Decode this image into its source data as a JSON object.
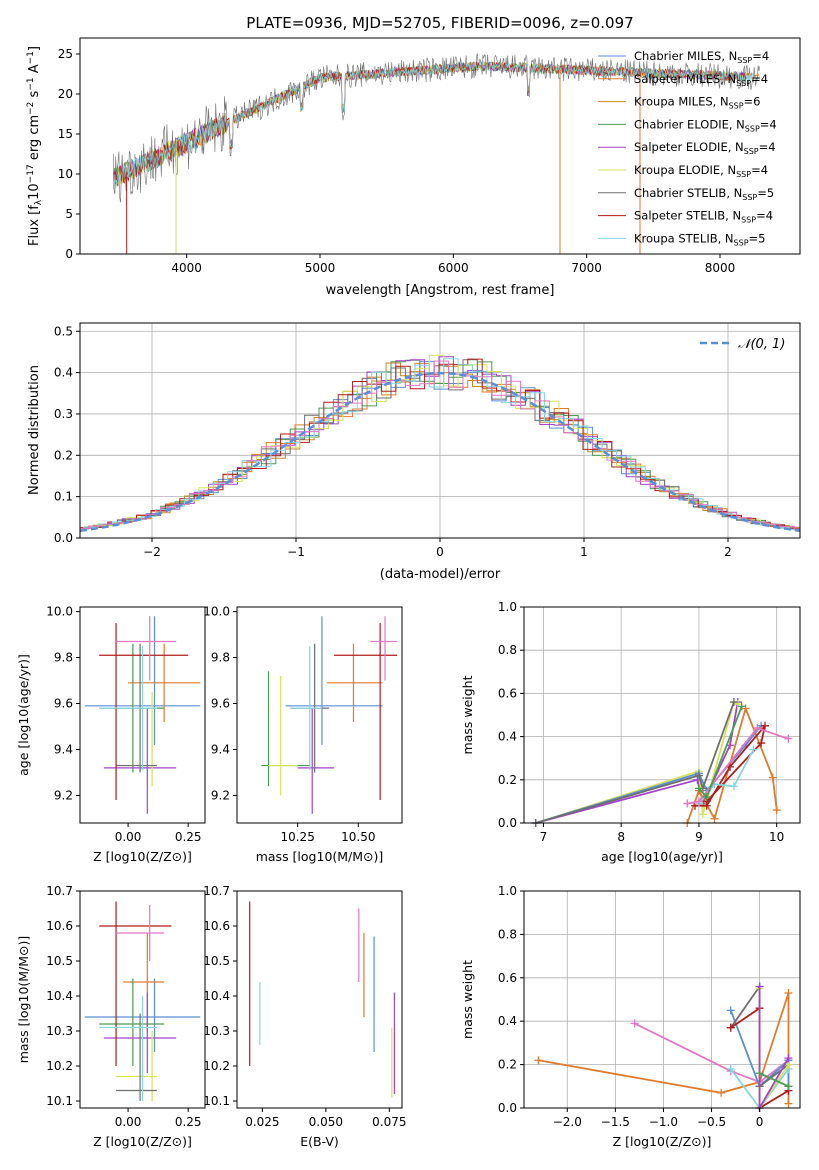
{
  "figure_title": "PLATE=0936, MJD=52705, FIBERID=0096, z=0.097",
  "chart_data": [
    {
      "type": "line",
      "id": "spectrum",
      "xlabel": "wavelength [Angstrom, rest frame]",
      "ylabel_parts": [
        "Flux [f",
        "λ",
        "10",
        "−17",
        " erg cm",
        "−2",
        " s",
        "−1",
        " A",
        "−1",
        "]"
      ],
      "xlim": [
        3200,
        8600
      ],
      "ylim": [
        0,
        27
      ],
      "xticks": [
        4000,
        5000,
        6000,
        7000,
        8000
      ],
      "yticks": [
        0,
        5,
        10,
        15,
        20,
        25
      ],
      "legend_position": "right",
      "series": [
        {
          "label": "Chabrier MILES, N",
          "sub": "SSP",
          "suffix": "=4",
          "color": "#5b8fd4"
        },
        {
          "label": "Salpeter MILES, N",
          "sub": "SSP",
          "suffix": "=4",
          "color": "#e07b2c"
        },
        {
          "label": "Kroupa MILES, N",
          "sub": "SSP",
          "suffix": "=6",
          "color": "#c8882a"
        },
        {
          "label": "Chabrier ELODIE, N",
          "sub": "SSP",
          "suffix": "=4",
          "color": "#4d9a55"
        },
        {
          "label": "Salpeter ELODIE, N",
          "sub": "SSP",
          "suffix": "=4",
          "color": "#a245c9"
        },
        {
          "label": "Kroupa ELODIE, N",
          "sub": "SSP",
          "suffix": "=4",
          "color": "#d5e35a"
        },
        {
          "label": "Chabrier STELIB, N",
          "sub": "SSP",
          "suffix": "=5",
          "color": "#6e6e6e"
        },
        {
          "label": "Salpeter STELIB, N",
          "sub": "SSP",
          "suffix": "=4",
          "color": "#b21c1c"
        },
        {
          "label": "Kroupa STELIB, N",
          "sub": "SSP",
          "suffix": "=5",
          "color": "#85d6df"
        }
      ]
    },
    {
      "type": "histogram",
      "id": "residuals",
      "xlabel": "(data-model)/error",
      "ylabel": "Normed distribution",
      "xlim": [
        -2.5,
        2.5
      ],
      "ylim": [
        0,
        0.52
      ],
      "xticks": [
        -2,
        -1,
        0,
        1,
        2
      ],
      "yticks": [
        0.0,
        0.1,
        0.2,
        0.3,
        0.4,
        0.5
      ],
      "reference_label": "𝒩(0, 1)",
      "reference_color": "#5b8fd4",
      "grid": true
    },
    {
      "type": "scatter",
      "id": "age-vs-Z",
      "xlabel": "Z [log10(Z/Z⊙)]",
      "ylabel": "age  [log10(age/yr)]",
      "xlim": [
        -0.2,
        0.32
      ],
      "ylim": [
        9.08,
        10.02
      ],
      "xticks": [
        0.0,
        0.25
      ],
      "xticklabels": [
        "0.00",
        "0.25"
      ],
      "yticks": [
        9.2,
        9.4,
        9.6,
        9.8,
        10.0
      ]
    },
    {
      "type": "scatter",
      "id": "age-vs-mass",
      "xlabel": "mass [log10(M/M⊙)]",
      "xlim": [
        10.0,
        10.68
      ],
      "ylim": [
        9.08,
        10.02
      ],
      "xticks": [
        10.25,
        10.5
      ],
      "xticklabels": [
        "10.25",
        "10.50"
      ],
      "yticks": [
        9.2,
        9.4,
        9.6,
        9.8,
        10.0
      ]
    },
    {
      "type": "line",
      "id": "massweight-vs-age",
      "xlabel": "age  [log10(age/yr)]",
      "ylabel": "mass weight",
      "xlim": [
        6.75,
        10.3
      ],
      "ylim": [
        0,
        1
      ],
      "xticks": [
        7,
        8,
        9,
        10
      ],
      "yticks": [
        0.0,
        0.2,
        0.4,
        0.6,
        0.8,
        1.0
      ],
      "grid": true
    },
    {
      "type": "scatter",
      "id": "mass-vs-Z",
      "xlabel": "Z [log10(Z/Z⊙)]",
      "ylabel": "mass [log10(M/M⊙)]",
      "xlim": [
        -0.2,
        0.32
      ],
      "ylim": [
        10.08,
        10.7
      ],
      "xticks": [
        0.0,
        0.25
      ],
      "xticklabels": [
        "0.00",
        "0.25"
      ],
      "yticks": [
        10.1,
        10.2,
        10.3,
        10.4,
        10.5,
        10.6,
        10.7
      ]
    },
    {
      "type": "scatter",
      "id": "mass-vs-EBV",
      "xlabel": "E(B-V)",
      "xlim": [
        0.015,
        0.08
      ],
      "ylim": [
        10.08,
        10.7
      ],
      "xticks": [
        0.025,
        0.05,
        0.075
      ],
      "xticklabels": [
        "0.025",
        "0.050",
        "0.075"
      ],
      "yticks": [
        10.1,
        10.2,
        10.3,
        10.4,
        10.5,
        10.6,
        10.7
      ]
    },
    {
      "type": "line",
      "id": "massweight-vs-Z",
      "xlabel": "Z [log10(Z/Z⊙)]",
      "ylabel": "mass weight",
      "xlim": [
        -2.45,
        0.42
      ],
      "ylim": [
        0,
        1
      ],
      "xticks": [
        -2.0,
        -1.5,
        -1.0,
        -0.5,
        0.0
      ],
      "yticks": [
        0.0,
        0.2,
        0.4,
        0.6,
        0.8,
        1.0
      ],
      "grid": true
    }
  ],
  "crosses_ageZ": [
    {
      "c": "#5b8fd4",
      "x": 0.11,
      "xe": [
        -0.18,
        0.3
      ],
      "y": 9.59,
      "ye": [
        9.42,
        9.98
      ]
    },
    {
      "c": "#e07b2c",
      "x": 0.15,
      "xe": [
        0.0,
        0.3
      ],
      "y": 9.69,
      "ye": [
        9.52,
        9.86
      ]
    },
    {
      "c": "#4d9a55",
      "x": 0.02,
      "xe": [
        -0.12,
        0.15
      ],
      "y": 9.58,
      "ye": [
        9.3,
        9.86
      ]
    },
    {
      "c": "#a245c9",
      "x": 0.08,
      "xe": [
        -0.1,
        0.2
      ],
      "y": 9.32,
      "ye": [
        9.12,
        9.58
      ]
    },
    {
      "c": "#d5e35a",
      "x": 0.1,
      "xe": [
        -0.05,
        0.12
      ],
      "y": 9.33,
      "ye": [
        9.24,
        9.65
      ]
    },
    {
      "c": "#6e6e6e",
      "x": 0.05,
      "xe": [
        -0.05,
        0.12
      ],
      "y": 9.33,
      "ye": [
        9.3,
        9.86
      ]
    },
    {
      "c": "#b21c1c",
      "x": -0.05,
      "xe": [
        -0.12,
        0.25
      ],
      "y": 9.81,
      "ye": [
        9.18,
        9.95
      ]
    },
    {
      "c": "#85d6df",
      "x": 0.06,
      "xe": [
        -0.12,
        0.12
      ],
      "y": 9.58,
      "ye": [
        9.31,
        9.85
      ]
    },
    {
      "c": "#e377c2",
      "x": 0.09,
      "xe": [
        -0.05,
        0.2
      ],
      "y": 9.87,
      "ye": [
        9.7,
        9.98
      ]
    }
  ],
  "crosses_ageM": [
    {
      "c": "#5b8fd4",
      "x": 10.35,
      "xe": [
        10.2,
        10.6
      ],
      "y": 9.59,
      "ye": [
        9.42,
        9.98
      ]
    },
    {
      "c": "#e07b2c",
      "x": 10.48,
      "xe": [
        10.37,
        10.6
      ],
      "y": 9.69,
      "ye": [
        9.52,
        9.86
      ]
    },
    {
      "c": "#4d9a55",
      "x": 10.13,
      "xe": [
        10.1,
        10.3
      ],
      "y": 9.33,
      "ye": [
        9.24,
        9.74
      ]
    },
    {
      "c": "#a245c9",
      "x": 10.31,
      "xe": [
        10.25,
        10.4
      ],
      "y": 9.32,
      "ye": [
        9.12,
        9.58
      ]
    },
    {
      "c": "#d5e35a",
      "x": 10.18,
      "xe": [
        10.13,
        10.25
      ],
      "y": 9.33,
      "ye": [
        9.2,
        9.72
      ]
    },
    {
      "c": "#6e6e6e",
      "x": 10.32,
      "xe": [
        10.22,
        10.38
      ],
      "y": 9.58,
      "ye": [
        9.3,
        9.86
      ]
    },
    {
      "c": "#b21c1c",
      "x": 10.59,
      "xe": [
        10.4,
        10.66
      ],
      "y": 9.81,
      "ye": [
        9.18,
        9.95
      ]
    },
    {
      "c": "#85d6df",
      "x": 10.3,
      "xe": [
        10.22,
        10.35
      ],
      "y": 9.58,
      "ye": [
        9.31,
        9.85
      ]
    },
    {
      "c": "#e377c2",
      "x": 10.61,
      "xe": [
        10.55,
        10.66
      ],
      "y": 9.87,
      "ye": [
        9.7,
        9.98
      ]
    }
  ],
  "crosses_MZ": [
    {
      "c": "#5b8fd4",
      "x": 0.11,
      "xe": [
        -0.18,
        0.3
      ],
      "y": 10.34,
      "ye": [
        10.24,
        10.45
      ]
    },
    {
      "c": "#e07b2c",
      "x": 0.08,
      "xe": [
        -0.02,
        0.15
      ],
      "y": 10.44,
      "ye": [
        10.3,
        10.58
      ]
    },
    {
      "c": "#4d9a55",
      "x": 0.02,
      "xe": [
        -0.12,
        0.15
      ],
      "y": 10.32,
      "ye": [
        10.2,
        10.45
      ]
    },
    {
      "c": "#a245c9",
      "x": 0.08,
      "xe": [
        -0.1,
        0.2
      ],
      "y": 10.28,
      "ye": [
        10.18,
        10.41
      ]
    },
    {
      "c": "#d5e35a",
      "x": 0.1,
      "xe": [
        -0.05,
        0.12
      ],
      "y": 10.17,
      "ye": [
        10.1,
        10.3
      ]
    },
    {
      "c": "#6e6e6e",
      "x": 0.05,
      "xe": [
        -0.05,
        0.12
      ],
      "y": 10.13,
      "ye": [
        10.1,
        10.35
      ]
    },
    {
      "c": "#b21c1c",
      "x": -0.05,
      "xe": [
        -0.12,
        0.18
      ],
      "y": 10.6,
      "ye": [
        10.2,
        10.67
      ]
    },
    {
      "c": "#85d6df",
      "x": 0.06,
      "xe": [
        -0.12,
        0.12
      ],
      "y": 10.31,
      "ye": [
        10.1,
        10.4
      ]
    },
    {
      "c": "#e377c2",
      "x": 0.09,
      "xe": [
        -0.05,
        0.15
      ],
      "y": 10.58,
      "ye": [
        10.5,
        10.66
      ]
    }
  ],
  "crosses_ME": [
    {
      "c": "#5b8fd4",
      "x": 0.069,
      "y": 10.34,
      "ye": [
        10.24,
        10.57
      ]
    },
    {
      "c": "#e07b2c",
      "x": 0.065,
      "y": 10.44,
      "ye": [
        10.34,
        10.58
      ]
    },
    {
      "c": "#d5e35a",
      "x": 0.076,
      "y": 10.17,
      "ye": [
        10.11,
        10.31
      ]
    },
    {
      "c": "#a245c9",
      "x": 0.077,
      "y": 10.28,
      "ye": [
        10.12,
        10.41
      ]
    },
    {
      "c": "#b21c1c",
      "x": 0.02,
      "y": 10.6,
      "ye": [
        10.2,
        10.67
      ]
    },
    {
      "c": "#85d6df",
      "x": 0.024,
      "y": 10.3,
      "ye": [
        10.26,
        10.44
      ]
    },
    {
      "c": "#e377c2",
      "x": 0.063,
      "y": 10.58,
      "ye": [
        10.44,
        10.65
      ]
    }
  ],
  "weights_age": [
    {
      "c": "#a245c9",
      "pts": [
        [
          6.9,
          0.0
        ],
        [
          8.98,
          0.2
        ],
        [
          9.05,
          0.09
        ],
        [
          9.4,
          0.36
        ],
        [
          9.5,
          0.56
        ]
      ]
    },
    {
      "c": "#d5e35a",
      "pts": [
        [
          6.9,
          0.0
        ],
        [
          9.0,
          0.24
        ],
        [
          9.05,
          0.04
        ],
        [
          9.45,
          0.56
        ],
        [
          9.5,
          0.55
        ]
      ]
    },
    {
      "c": "#5b8fd4",
      "pts": [
        [
          6.9,
          0.0
        ],
        [
          9.0,
          0.23
        ],
        [
          9.1,
          0.15
        ],
        [
          9.6,
          0.36
        ],
        [
          9.8,
          0.45
        ]
      ]
    },
    {
      "c": "#6e6e6e",
      "pts": [
        [
          6.9,
          0.0
        ],
        [
          9.0,
          0.22
        ],
        [
          9.05,
          0.16
        ],
        [
          9.45,
          0.56
        ]
      ]
    },
    {
      "c": "#e07b2c",
      "pts": [
        [
          8.85,
          0.0
        ],
        [
          9.0,
          0.15
        ],
        [
          9.2,
          0.02
        ],
        [
          9.6,
          0.53
        ],
        [
          9.95,
          0.21
        ],
        [
          10.0,
          0.06
        ]
      ]
    },
    {
      "c": "#b21c1c",
      "pts": [
        [
          8.95,
          0.08
        ],
        [
          9.1,
          0.08
        ],
        [
          9.4,
          0.26
        ],
        [
          9.85,
          0.45
        ],
        [
          9.8,
          0.37
        ],
        [
          9.1,
          0.1
        ]
      ]
    },
    {
      "c": "#85d6df",
      "pts": [
        [
          9.0,
          0.09
        ],
        [
          9.2,
          0.18
        ],
        [
          9.45,
          0.17
        ],
        [
          9.7,
          0.34
        ]
      ]
    },
    {
      "c": "#e377c2",
      "pts": [
        [
          8.85,
          0.09
        ],
        [
          9.0,
          0.1
        ],
        [
          9.75,
          0.44
        ],
        [
          10.15,
          0.39
        ]
      ]
    },
    {
      "c": "#4d9a55",
      "pts": [
        [
          9.0,
          0.16
        ],
        [
          9.1,
          0.12
        ],
        [
          9.55,
          0.54
        ]
      ]
    }
  ],
  "weights_Z": [
    {
      "c": "#e07b2c",
      "pts": [
        [
          -2.3,
          0.22
        ],
        [
          -0.4,
          0.07
        ],
        [
          0.0,
          0.12
        ],
        [
          0.3,
          0.53
        ],
        [
          0.3,
          0.02
        ]
      ]
    },
    {
      "c": "#e377c2",
      "pts": [
        [
          -1.3,
          0.39
        ],
        [
          -0.3,
          0.17
        ],
        [
          0.0,
          0.12
        ],
        [
          0.3,
          0.22
        ]
      ]
    },
    {
      "c": "#5b8fd4",
      "pts": [
        [
          -0.3,
          0.45
        ],
        [
          0.0,
          0.1
        ],
        [
          0.3,
          0.22
        ],
        [
          0.3,
          0.08
        ]
      ]
    },
    {
      "c": "#6e6e6e",
      "pts": [
        [
          -0.3,
          0.37
        ],
        [
          0.0,
          0.56
        ],
        [
          0.0,
          0.1
        ],
        [
          0.3,
          0.2
        ]
      ]
    },
    {
      "c": "#b21c1c",
      "pts": [
        [
          -0.3,
          0.37
        ],
        [
          0.0,
          0.46
        ],
        [
          0.0,
          0.0
        ],
        [
          0.3,
          0.08
        ]
      ]
    },
    {
      "c": "#85d6df",
      "pts": [
        [
          -0.3,
          0.18
        ],
        [
          0.0,
          0.0
        ],
        [
          0.3,
          0.18
        ]
      ]
    },
    {
      "c": "#d5e35a",
      "pts": [
        [
          0.0,
          0.55
        ],
        [
          0.0,
          0.0
        ],
        [
          0.3,
          0.2
        ]
      ]
    },
    {
      "c": "#a245c9",
      "pts": [
        [
          0.0,
          0.56
        ],
        [
          0.0,
          0.0
        ],
        [
          0.3,
          0.23
        ]
      ]
    },
    {
      "c": "#4d9a55",
      "pts": [
        [
          0.0,
          0.16
        ],
        [
          0.3,
          0.1
        ]
      ]
    }
  ]
}
